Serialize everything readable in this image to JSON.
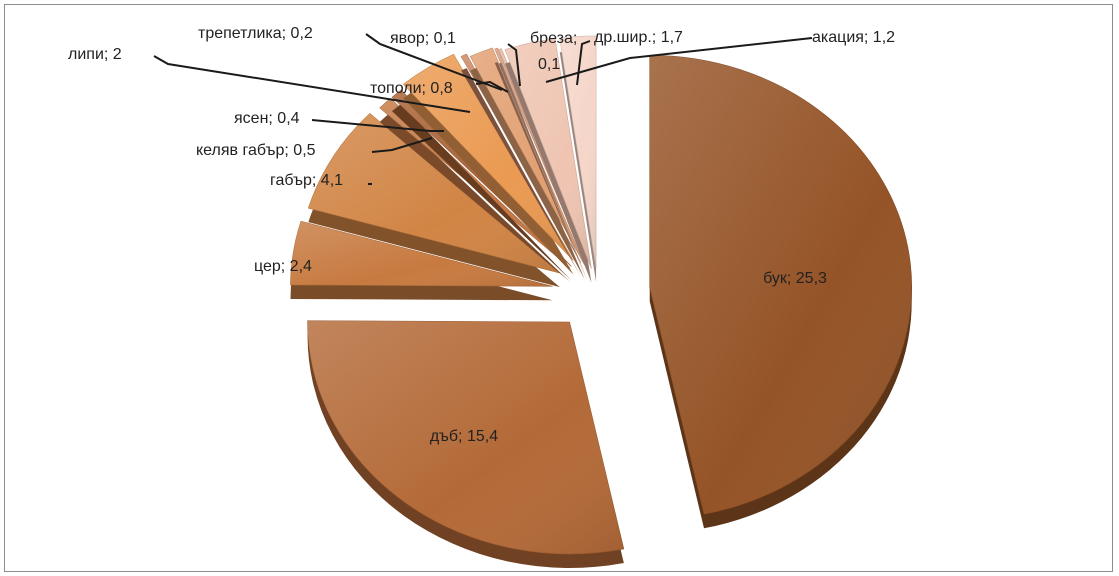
{
  "chart_data": {
    "type": "pie",
    "style": "3d-exploded",
    "title": "",
    "slices": [
      {
        "label": "бук",
        "value": 25.3,
        "display": "бук; 25,3",
        "color": "#955427"
      },
      {
        "label": "дъб",
        "value": 15.4,
        "display": "дъб; 15,4",
        "color": "#b46a38"
      },
      {
        "label": "цер",
        "value": 2.4,
        "display": "цер; 2,4",
        "color": "#c77a40"
      },
      {
        "label": "габър",
        "value": 4.1,
        "display": "габър; 4,1",
        "color": "#d18545"
      },
      {
        "label": "келяв габър",
        "value": 0.5,
        "display": "келяв габър; 0,5",
        "color": "#c47843"
      },
      {
        "label": "ясен",
        "value": 0.4,
        "display": "ясен; 0,4",
        "color": "#a86032"
      },
      {
        "label": "липи",
        "value": 2,
        "display": "липи; 2",
        "color": "#ea9a52"
      },
      {
        "label": "трепетлика",
        "value": 0.2,
        "display": "трепетлика; 0,2",
        "color": "#c98460"
      },
      {
        "label": "тополи",
        "value": 0.8,
        "display": "тополи; 0,8",
        "color": "#e2a072"
      },
      {
        "label": "явор",
        "value": 0.1,
        "display": "явор; 0,1",
        "color": "#d99b7c"
      },
      {
        "label": "бреза",
        "value": 0.1,
        "display": "бреза; 0,1",
        "color": "#e6b8a0"
      },
      {
        "label": "др.шир.",
        "value": 1.7,
        "display": "др.шир.; 1,7",
        "color": "#efc5b2"
      },
      {
        "label": "акация",
        "value": 1.2,
        "display": "акация; 1,2",
        "color": "#f5d6c9"
      }
    ]
  }
}
